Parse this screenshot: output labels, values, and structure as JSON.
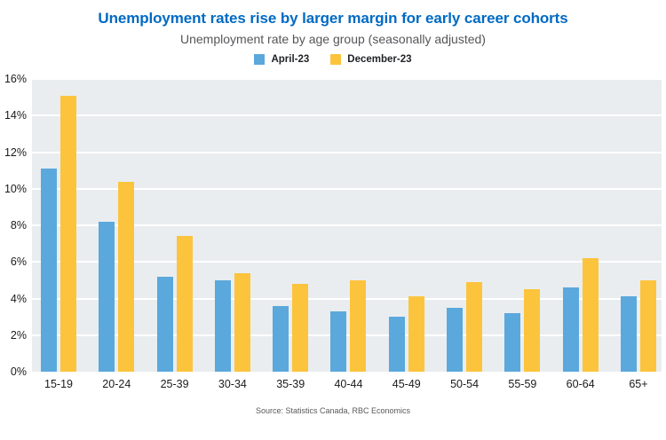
{
  "header": {
    "title": "Unemployment rates rise by larger margin for early career cohorts",
    "subtitle": "Unemployment rate by age group (seasonally adjusted)"
  },
  "chart_data": {
    "type": "bar",
    "categories": [
      "15-19",
      "20-24",
      "25-39",
      "30-34",
      "35-39",
      "40-44",
      "45-49",
      "50-54",
      "55-59",
      "60-64",
      "65+"
    ],
    "series": [
      {
        "name": "April-23",
        "color": "#5BA8DC",
        "values": [
          11.1,
          8.2,
          5.2,
          5.0,
          3.6,
          3.3,
          3.0,
          3.5,
          3.2,
          4.6,
          4.1
        ]
      },
      {
        "name": "December-23",
        "color": "#FCC43D",
        "values": [
          15.1,
          10.4,
          7.4,
          5.4,
          4.8,
          5.0,
          4.1,
          4.9,
          4.5,
          6.2,
          5.0
        ]
      }
    ],
    "title": "Unemployment rates rise by larger margin for early career cohorts",
    "subtitle": "Unemployment rate by age group (seasonally adjusted)",
    "xlabel": "",
    "ylabel": "",
    "ylim": [
      0,
      16
    ],
    "ytick_step": 2,
    "ytick_suffix": "%",
    "grid": true,
    "legend_position": "top"
  },
  "footer": {
    "source": "Source: Statistics Canada, RBC Economics"
  },
  "colors": {
    "title": "#006AC3",
    "subtitle_text": "#55565A",
    "plot_bg": "#E9EDF0",
    "grid": "#FFFFFF",
    "axis_text": "#1A1A1A",
    "source_text": "#58595B",
    "april_blue": "#5BA8DC",
    "december_yellow": "#FCC43D"
  }
}
